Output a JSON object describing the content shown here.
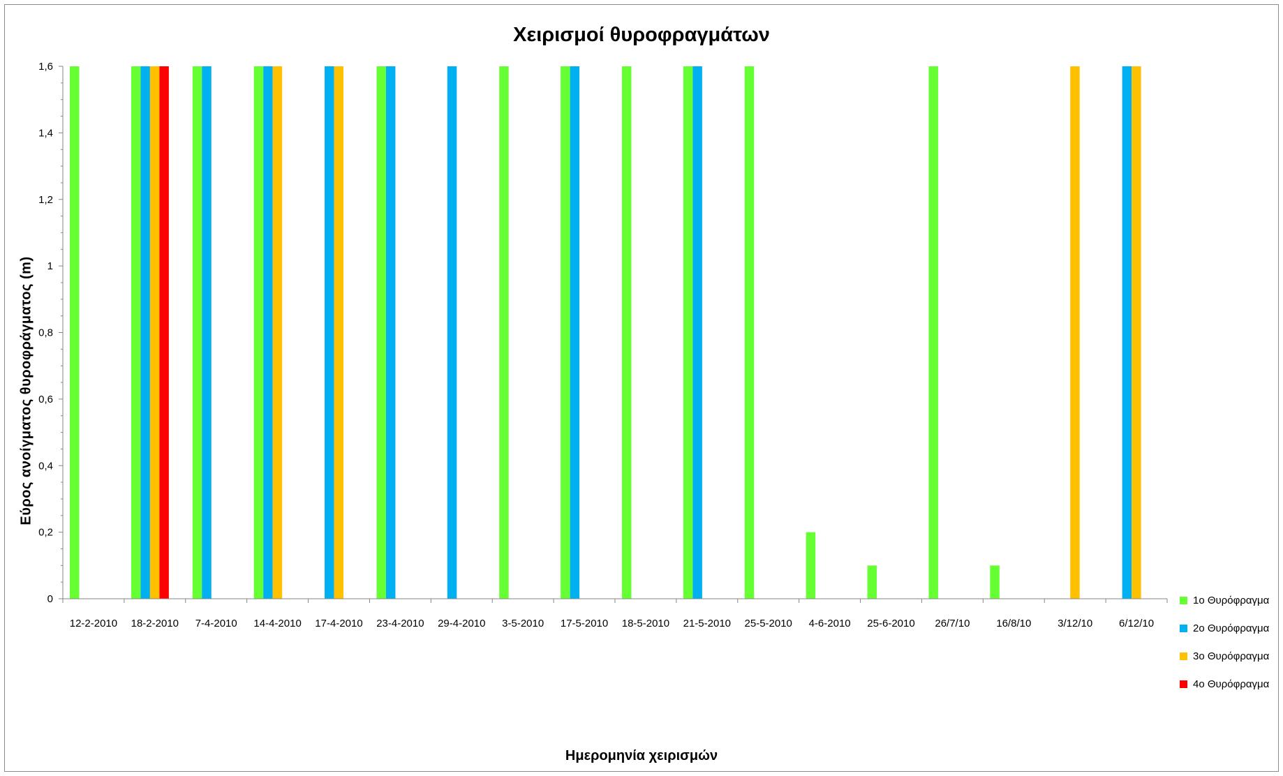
{
  "chart_data": {
    "type": "bar",
    "title": "Χειρισμοί θυροφραγμάτων",
    "xlabel": "Ημερομηνία χειρισμών",
    "ylabel": "Εύρος ανοίγματος θυροφράγματος (m)",
    "ylim": [
      0,
      1.6
    ],
    "yticks": [
      "0",
      "0,2",
      "0,4",
      "0,6",
      "0,8",
      "1",
      "1,2",
      "1,4",
      "1,6"
    ],
    "categories": [
      "12-2-2010",
      "18-2-2010",
      "7-4-2010",
      "14-4-2010",
      "17-4-2010",
      "23-4-2010",
      "29-4-2010",
      "3-5-2010",
      "17-5-2010",
      "18-5-2010",
      "21-5-2010",
      "25-5-2010",
      "4-6-2010",
      "25-6-2010",
      "26/7/10",
      "16/8/10",
      "3/12/10",
      "6/12/10"
    ],
    "series": [
      {
        "name": "1ο Θυρόφραγμα",
        "color": "#66ff33",
        "values": [
          1.6,
          1.6,
          1.6,
          1.6,
          0,
          1.6,
          0,
          1.6,
          1.6,
          1.6,
          1.6,
          1.6,
          0.2,
          0.1,
          1.6,
          0.1,
          0,
          0
        ]
      },
      {
        "name": "2ο Θυρόφραγμα",
        "color": "#00b0f0",
        "values": [
          0,
          1.6,
          1.6,
          1.6,
          1.6,
          1.6,
          1.6,
          0,
          1.6,
          0,
          1.6,
          0,
          0,
          0,
          0,
          0,
          0,
          1.6
        ]
      },
      {
        "name": "3ο Θυρόφραγμα",
        "color": "#ffc000",
        "values": [
          0,
          1.6,
          0,
          1.6,
          1.6,
          0,
          0,
          0,
          0,
          0,
          0,
          0,
          0,
          0,
          0,
          0,
          1.6,
          1.6
        ]
      },
      {
        "name": "4ο Θυρόφραγμα",
        "color": "#ff0000",
        "values": [
          0,
          1.6,
          0,
          0,
          0,
          0,
          0,
          0,
          0,
          0,
          0,
          0,
          0,
          0,
          0,
          0,
          0,
          0
        ]
      }
    ],
    "grid": false,
    "legend_position": "bottom-right"
  }
}
